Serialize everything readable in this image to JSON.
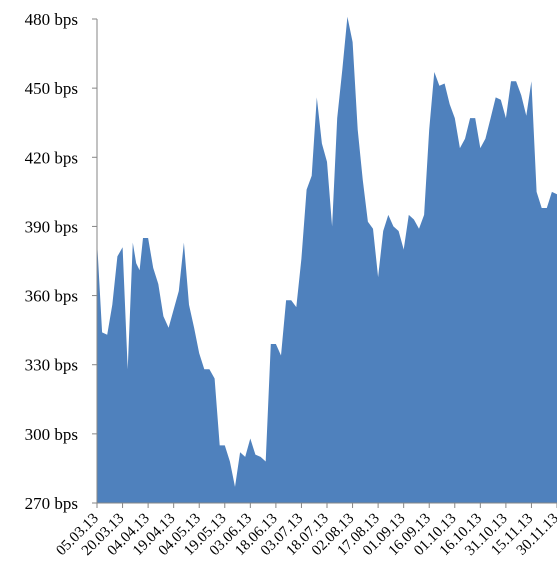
{
  "chart_data": {
    "type": "area",
    "title": "",
    "xlabel": "",
    "ylabel": "",
    "ylim": [
      270,
      480
    ],
    "y_unit": "bps",
    "y_ticks": [
      270,
      300,
      330,
      360,
      390,
      420,
      450,
      480
    ],
    "y_tick_labels": [
      "270 bps",
      "300 bps",
      "330 bps",
      "360 bps",
      "390 bps",
      "420 bps",
      "450 bps",
      "480 bps"
    ],
    "x_tick_labels": [
      "05.03.13",
      "20.03.13",
      "04.04.13",
      "19.04.13",
      "04.05.13",
      "19.05.13",
      "03.06.13",
      "18.06.13",
      "03.07.13",
      "18.07.13",
      "02.08.13",
      "17.08.13",
      "01.09.13",
      "16.09.13",
      "01.10.13",
      "16.10.13",
      "31.10.13",
      "15.11.13",
      "30.11.13"
    ],
    "grid": false,
    "legend": "none",
    "colors": {
      "fill": "#4f81bd",
      "axis": "#868686"
    },
    "series": [
      {
        "x": [
          0,
          3,
          6,
          9,
          12,
          15,
          18,
          21,
          23,
          25,
          27,
          30,
          33,
          36,
          39,
          42,
          45,
          48,
          51,
          54,
          57,
          60,
          63,
          66,
          69,
          72,
          75,
          78,
          81,
          84,
          87,
          90,
          93,
          96,
          99,
          102,
          105,
          108,
          111,
          114,
          117,
          120,
          123,
          126,
          129,
          132,
          135,
          138,
          141,
          144,
          147,
          150,
          153,
          156,
          159,
          162,
          165,
          168,
          171,
          174,
          177,
          180,
          183,
          186,
          189,
          192,
          195,
          198,
          201,
          204,
          207,
          210,
          213,
          216,
          219,
          222,
          225,
          228,
          231,
          234,
          237,
          240,
          243,
          246,
          249,
          252,
          255,
          258,
          261,
          264,
          267,
          270
        ],
        "values": [
          384,
          344,
          343,
          356,
          377,
          381,
          328,
          383,
          374,
          371,
          385,
          385,
          372,
          365,
          351,
          346,
          354,
          362,
          383,
          356,
          346,
          335,
          328,
          328,
          324,
          295,
          295,
          288,
          277,
          292,
          290,
          298,
          291,
          290,
          288,
          339,
          339,
          334,
          358,
          358,
          355,
          376,
          406,
          412,
          446,
          426,
          418,
          390,
          437,
          458,
          481,
          470,
          432,
          410,
          392,
          389,
          368,
          388,
          395,
          390,
          388,
          380,
          395,
          393,
          389,
          395,
          432,
          457,
          451,
          452,
          443,
          437,
          424,
          428,
          437,
          437,
          424,
          428,
          437,
          446,
          445,
          437,
          453,
          453,
          447,
          438,
          453,
          405,
          398,
          398,
          405,
          404
        ]
      }
    ]
  }
}
